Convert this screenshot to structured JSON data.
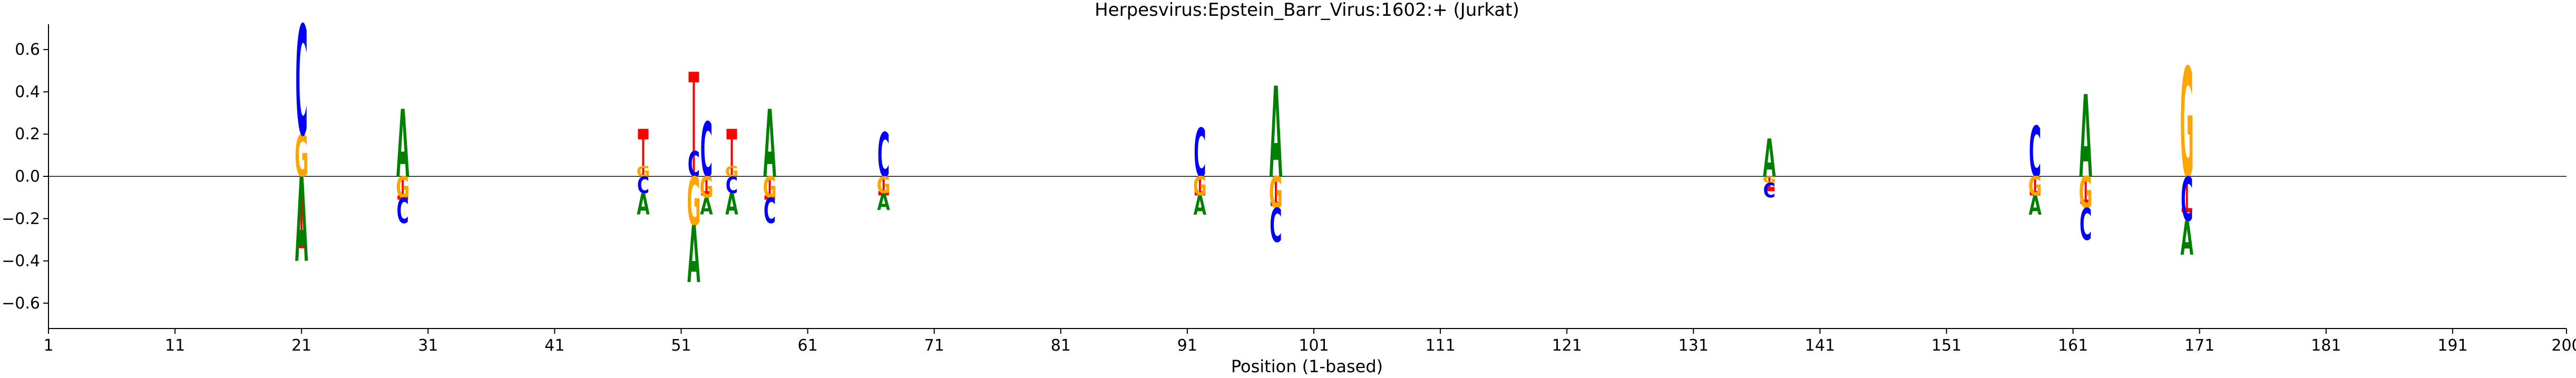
{
  "chart_data": {
    "type": "sequence-logo",
    "title": "Herpesvirus:Epstein_Barr_Virus:1602:+  (Jurkat)",
    "xlabel": "Position (1-based)",
    "ylabel": "",
    "xlim": [
      1,
      200
    ],
    "ylim": [
      -0.72,
      0.72
    ],
    "xticks": [
      1,
      11,
      21,
      31,
      41,
      51,
      61,
      71,
      81,
      91,
      101,
      111,
      121,
      131,
      141,
      151,
      161,
      171,
      181,
      191,
      200
    ],
    "yticks": [
      -0.6,
      -0.4,
      -0.2,
      0.0,
      0.2,
      0.4,
      0.6
    ],
    "ytick_labels": [
      "−0.6",
      "−0.4",
      "−0.2",
      "0.0",
      "0.2",
      "0.4",
      "0.6"
    ],
    "colors": {
      "A": "#008000",
      "C": "#0000ff",
      "G": "#ffa500",
      "marker": "#ff0000"
    },
    "positions": [
      {
        "pos": 21,
        "marker": -0.33,
        "up": [
          [
            "G",
            0.2
          ],
          [
            "C",
            0.52
          ]
        ],
        "down": [
          [
            "A",
            0.4
          ]
        ]
      },
      {
        "pos": 29,
        "marker": -0.1,
        "up": [
          [
            "A",
            0.32
          ]
        ],
        "down": [
          [
            "G",
            0.1
          ],
          [
            "C",
            0.12
          ]
        ]
      },
      {
        "pos": 48,
        "marker": 0.2,
        "up": [
          [
            "G",
            0.05
          ]
        ],
        "down": [
          [
            "C",
            0.08
          ],
          [
            "A",
            0.1
          ]
        ]
      },
      {
        "pos": 52,
        "marker": 0.47,
        "up": [
          [
            "C",
            0.12
          ]
        ],
        "down": [
          [
            "G",
            0.23
          ],
          [
            "A",
            0.27
          ]
        ]
      },
      {
        "pos": 53,
        "marker": -0.08,
        "up": [
          [
            "C",
            0.26
          ]
        ],
        "down": [
          [
            "G",
            0.1
          ],
          [
            "A",
            0.08
          ]
        ]
      },
      {
        "pos": 55,
        "marker": 0.2,
        "up": [
          [
            "G",
            0.05
          ]
        ],
        "down": [
          [
            "C",
            0.08
          ],
          [
            "A",
            0.1
          ]
        ]
      },
      {
        "pos": 58,
        "marker": -0.1,
        "up": [
          [
            "A",
            0.32
          ]
        ],
        "down": [
          [
            "G",
            0.1
          ],
          [
            "C",
            0.12
          ]
        ]
      },
      {
        "pos": 67,
        "marker": -0.08,
        "up": [
          [
            "C",
            0.21
          ]
        ],
        "down": [
          [
            "G",
            0.08
          ],
          [
            "A",
            0.08
          ]
        ]
      },
      {
        "pos": 92,
        "marker": -0.08,
        "up": [
          [
            "C",
            0.23
          ]
        ],
        "down": [
          [
            "G",
            0.09
          ],
          [
            "A",
            0.09
          ]
        ]
      },
      {
        "pos": 98,
        "marker": -0.13,
        "up": [
          [
            "A",
            0.43
          ]
        ],
        "down": [
          [
            "G",
            0.15
          ],
          [
            "C",
            0.16
          ]
        ]
      },
      {
        "pos": 137,
        "marker": -0.06,
        "up": [
          [
            "A",
            0.18
          ]
        ],
        "down": [
          [
            "G",
            0.03
          ],
          [
            "C",
            0.07
          ]
        ]
      },
      {
        "pos": 158,
        "marker": -0.08,
        "up": [
          [
            "C",
            0.24
          ]
        ],
        "down": [
          [
            "G",
            0.09
          ],
          [
            "A",
            0.09
          ]
        ]
      },
      {
        "pos": 162,
        "marker": -0.12,
        "up": [
          [
            "A",
            0.39
          ]
        ],
        "down": [
          [
            "G",
            0.15
          ],
          [
            "C",
            0.15
          ]
        ]
      },
      {
        "pos": 170,
        "marker": -0.16,
        "up": [
          [
            "G",
            0.52
          ]
        ],
        "down": [
          [
            "C",
            0.21
          ],
          [
            "A",
            0.16
          ]
        ]
      }
    ]
  }
}
